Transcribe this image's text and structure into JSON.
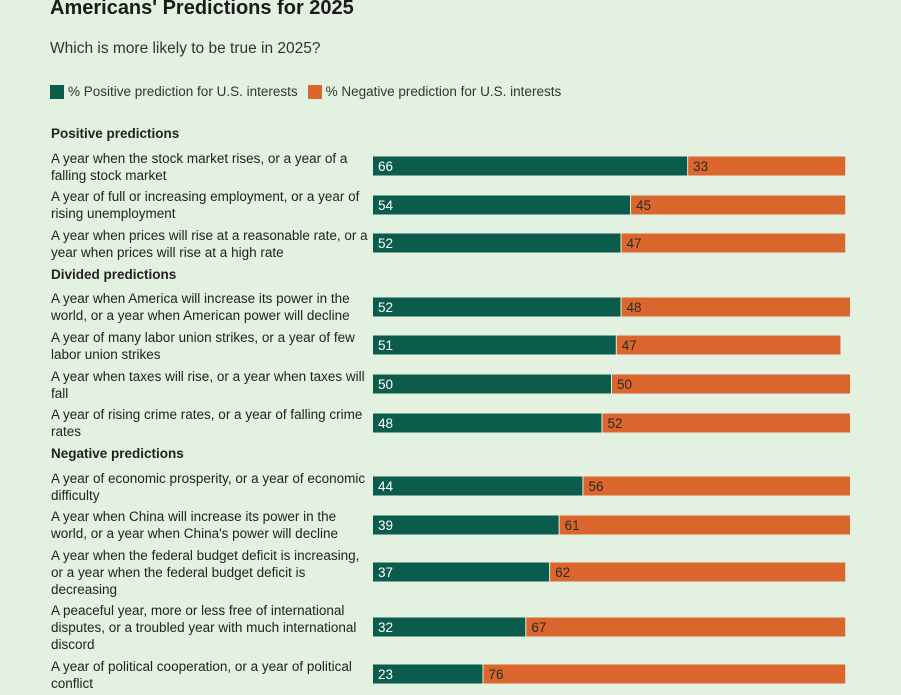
{
  "title": "Americans' Predictions for 2025",
  "subtitle": "Which is more likely to be true in 2025?",
  "legend": {
    "positive": "% Positive prediction for U.S. interests",
    "negative": "% Negative prediction for U.S. interests"
  },
  "colors": {
    "positive": "#0b5c4d",
    "negative": "#dc672e",
    "background": "#e3f1e0"
  },
  "chart_data": {
    "type": "bar",
    "orientation": "horizontal",
    "stacked": true,
    "title": "Americans' Predictions for 2025",
    "subtitle": "Which is more likely to be true in 2025?",
    "series": [
      {
        "name": "% Positive prediction for U.S. interests"
      },
      {
        "name": "% Negative prediction for U.S. interests"
      }
    ],
    "xlim": [
      0,
      100
    ],
    "groups": [
      {
        "name": "Positive predictions",
        "rows": [
          {
            "label": "A year when the stock market rises, or a year of a falling stock market",
            "positive": 66,
            "negative": 33
          },
          {
            "label": "A year of full or increasing employment, or a year of rising unemployment",
            "positive": 54,
            "negative": 45
          },
          {
            "label": "A year when prices will rise at a reasonable rate, or a year when prices will rise at a high rate",
            "positive": 52,
            "negative": 47
          }
        ]
      },
      {
        "name": "Divided predictions",
        "rows": [
          {
            "label": "A year when America will increase its power in the world, or a year when American power will decline",
            "positive": 52,
            "negative": 48
          },
          {
            "label": "A year of many labor union strikes, or a year of few labor union strikes",
            "positive": 51,
            "negative": 47
          },
          {
            "label": "A year when taxes will rise, or a year when taxes will fall",
            "positive": 50,
            "negative": 50
          },
          {
            "label": "A year of rising crime rates, or a year of falling crime rates",
            "positive": 48,
            "negative": 52
          }
        ]
      },
      {
        "name": "Negative predictions",
        "rows": [
          {
            "label": "A year of economic prosperity, or a year of economic difficulty",
            "positive": 44,
            "negative": 56
          },
          {
            "label": "A year when China will increase its power in the world, or a year when China's power will decline",
            "positive": 39,
            "negative": 61
          },
          {
            "label": "A year when the federal budget deficit is increasing, or a year when the federal budget deficit is decreasing",
            "positive": 37,
            "negative": 62
          },
          {
            "label": "A peaceful year, more or less free of international disputes, or a troubled year with much international discord",
            "positive": 32,
            "negative": 67
          },
          {
            "label": "A year of political cooperation, or a year of political conflict",
            "positive": 23,
            "negative": 76
          }
        ]
      }
    ]
  }
}
